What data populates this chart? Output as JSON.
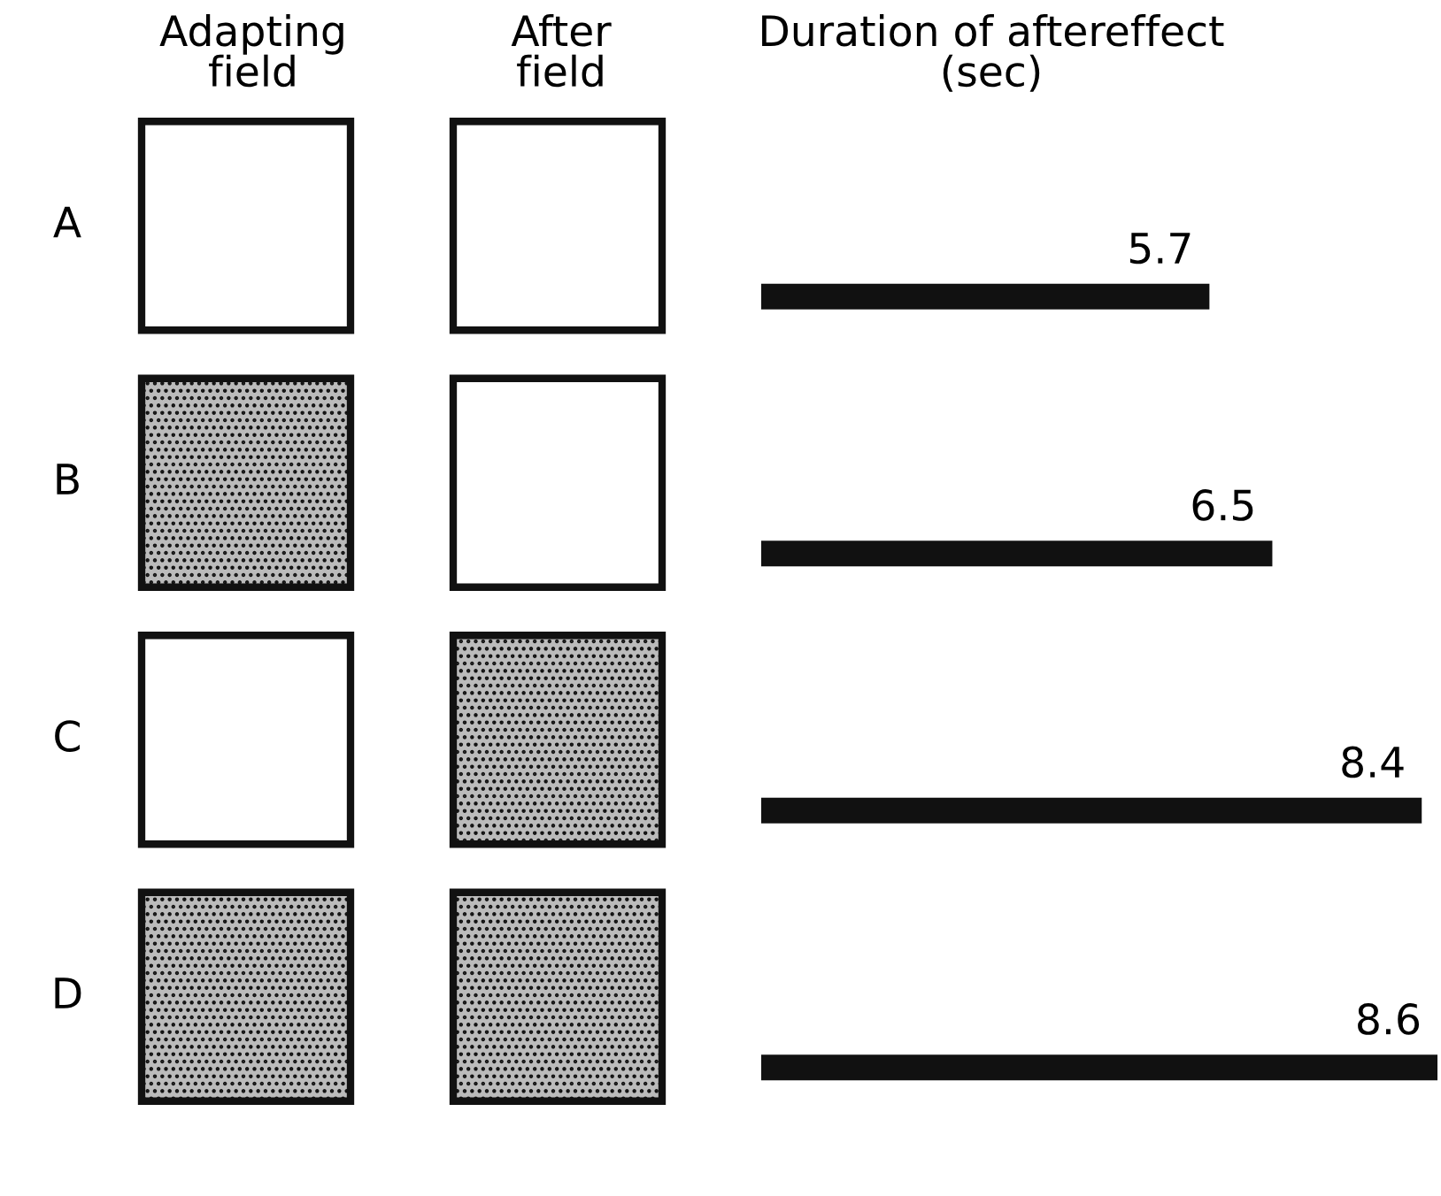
{
  "chart_data": {
    "type": "bar",
    "orientation": "horizontal",
    "title": "Duration of aftereffect\n(sec)",
    "annotations": [
      "Adapting\nfield",
      "After\nfield"
    ],
    "categories": [
      "A",
      "B",
      "C",
      "D"
    ],
    "values": [
      5.7,
      6.5,
      8.4,
      8.6
    ],
    "color": "#111111",
    "data_labels": true
  }
}
